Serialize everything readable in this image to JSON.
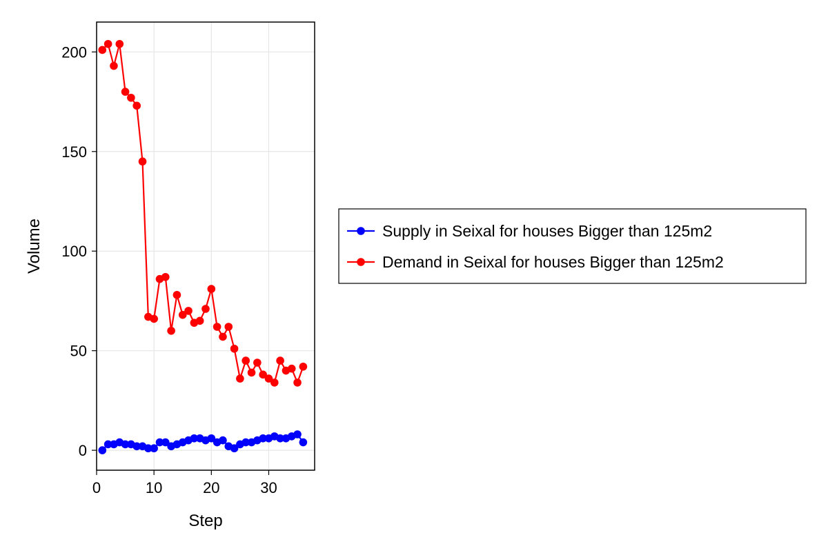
{
  "chart_data": {
    "type": "line",
    "title": "",
    "xlabel": "Step",
    "ylabel": "Volume",
    "xlim": [
      0,
      38
    ],
    "ylim": [
      -10,
      215
    ],
    "x_ticks": [
      0,
      10,
      20,
      30
    ],
    "y_ticks": [
      0,
      50,
      100,
      150,
      200
    ],
    "grid": true,
    "legend_position": "right",
    "x": [
      1,
      2,
      3,
      4,
      5,
      6,
      7,
      8,
      9,
      10,
      11,
      12,
      13,
      14,
      15,
      16,
      17,
      18,
      19,
      20,
      21,
      22,
      23,
      24,
      25,
      26,
      27,
      28,
      29,
      30,
      31,
      32,
      33,
      34,
      35,
      36
    ],
    "series": [
      {
        "name": "Supply in Seixal for houses Bigger than 125m2",
        "color": "#0000ff",
        "values": [
          0,
          3,
          3,
          4,
          3,
          3,
          2,
          2,
          1,
          1,
          4,
          4,
          2,
          3,
          4,
          5,
          6,
          6,
          5,
          6,
          4,
          5,
          2,
          1,
          3,
          4,
          4,
          5,
          6,
          6,
          7,
          6,
          6,
          7,
          8,
          4
        ]
      },
      {
        "name": "Demand in Seixal for houses Bigger than 125m2",
        "color": "#ff0000",
        "values": [
          201,
          204,
          193,
          204,
          180,
          177,
          173,
          145,
          67,
          66,
          86,
          87,
          60,
          78,
          68,
          70,
          64,
          65,
          71,
          81,
          62,
          57,
          62,
          51,
          36,
          45,
          39,
          44,
          38,
          36,
          34,
          45,
          40,
          41,
          34,
          42
        ]
      }
    ]
  }
}
